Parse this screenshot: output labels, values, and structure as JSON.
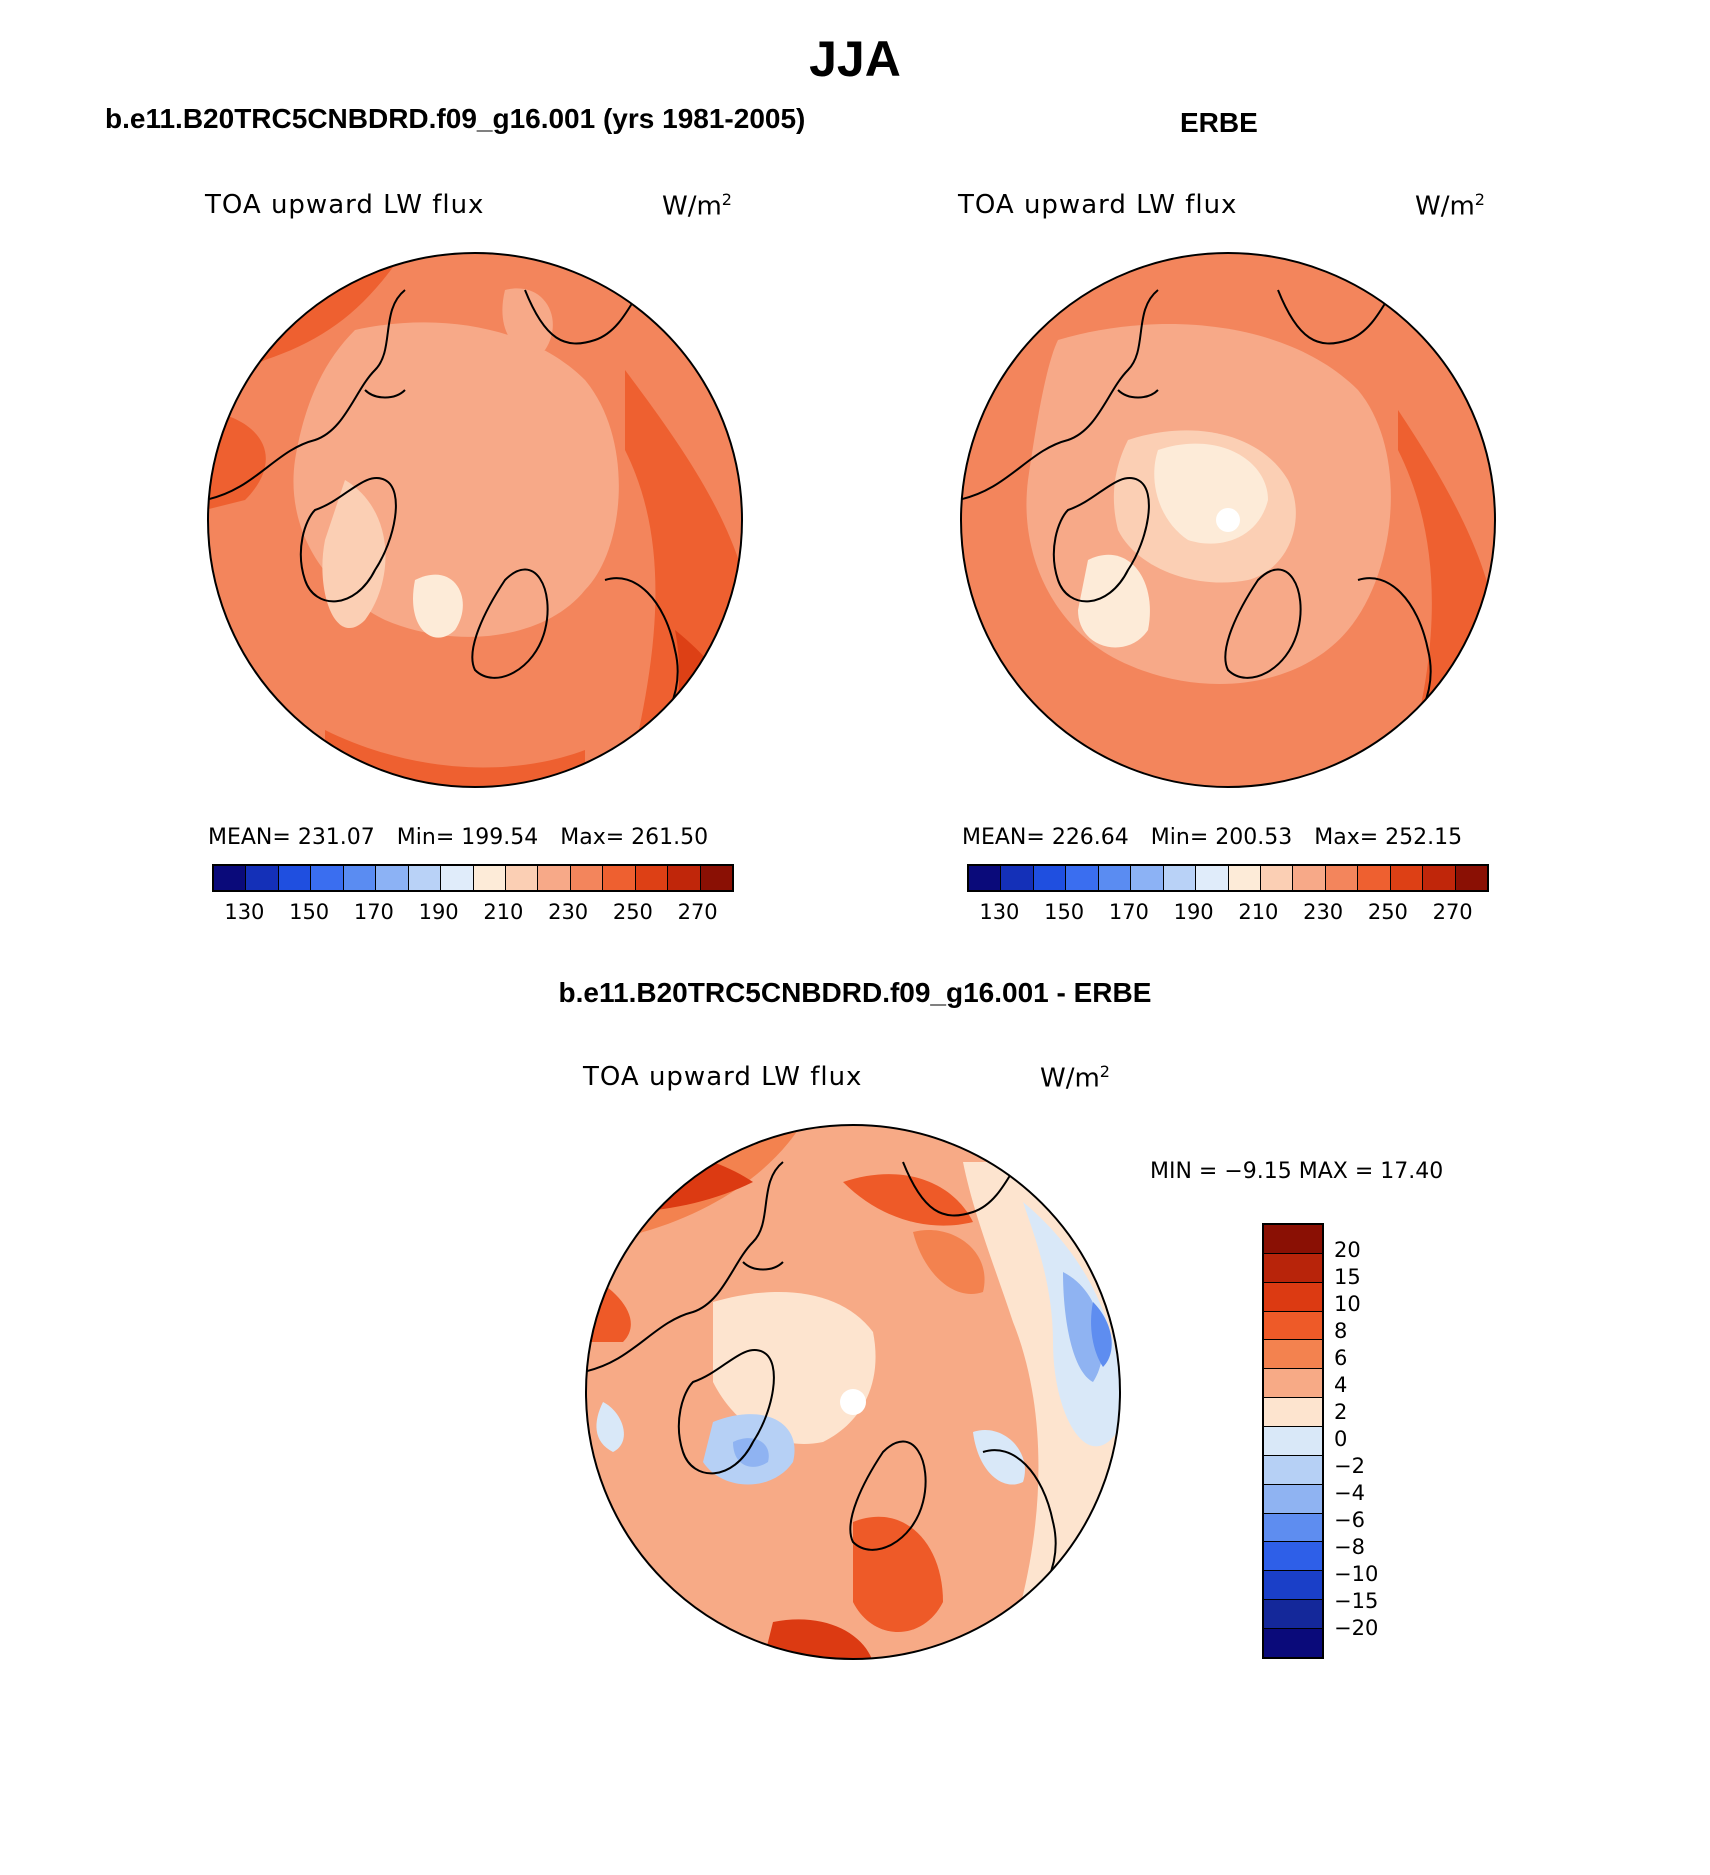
{
  "title": "JJA",
  "panels": [
    {
      "title": "b.e11.B20TRC5CNBDRD.f09_g16.001 (yrs 1981-2005)",
      "variable": "TOA upward LW flux",
      "unit_base": "W/m",
      "unit_exp": "2",
      "stats": {
        "mean": "MEAN= 231.07",
        "min": "Min= 199.54",
        "max": "Max= 261.50"
      }
    },
    {
      "title": "ERBE",
      "variable": "TOA upward LW flux",
      "unit_base": "W/m",
      "unit_exp": "2",
      "stats": {
        "mean": "MEAN= 226.64",
        "min": "Min= 200.53",
        "max": "Max= 252.15"
      }
    }
  ],
  "abs_colorbar": {
    "colors": [
      "#0a0a7a",
      "#1430b8",
      "#1f4fe0",
      "#3a6ef0",
      "#5a8cf2",
      "#8cb2f5",
      "#b9d2f7",
      "#e0ecfa",
      "#fdebd8",
      "#fbcfb4",
      "#f7a988",
      "#f3855c",
      "#ee6030",
      "#dd4015",
      "#c0260a",
      "#8a1004"
    ],
    "labels": [
      "130",
      "150",
      "170",
      "190",
      "210",
      "230",
      "250",
      "270"
    ]
  },
  "diff_panel": {
    "title": "b.e11.B20TRC5CNBDRD.f09_g16.001 - ERBE",
    "variable": "TOA upward LW flux",
    "unit_base": "W/m",
    "unit_exp": "2",
    "minmax": "MIN =   −9.15 MAX =   17.40"
  },
  "diff_colorbar": {
    "colors": [
      "#8a1004",
      "#b8240a",
      "#dc3a12",
      "#ee5a28",
      "#f3824f",
      "#f7aa86",
      "#fde4cf",
      "#d9e8f8",
      "#b6d0f5",
      "#8fb3f2",
      "#5e8df0",
      "#2e5fe8",
      "#1a3fc8",
      "#14289a",
      "#0a0a7a"
    ],
    "labels": [
      "20",
      "15",
      "10",
      "8",
      "6",
      "4",
      "2",
      "0",
      "−2",
      "−4",
      "−6",
      "−8",
      "−10",
      "−15",
      "−20"
    ]
  }
}
